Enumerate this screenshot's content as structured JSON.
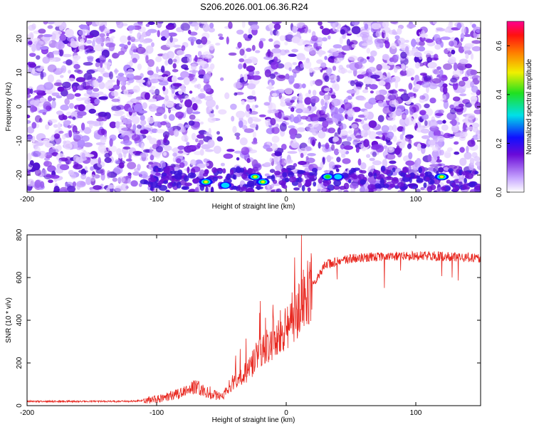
{
  "title": "S206.2026.001.06.36.R24",
  "chart_data": [
    {
      "type": "heatmap",
      "xlabel": "Height of straight line (km)",
      "ylabel": "Frequency (Hz)",
      "xlim": [
        -200,
        150
      ],
      "ylim": [
        -25,
        25
      ],
      "x_ticks": [
        -200,
        -100,
        0,
        100
      ],
      "y_ticks": [
        -20,
        -10,
        0,
        10,
        20
      ],
      "colorbar": {
        "label": "Normalized spectral amplitude",
        "range": [
          0,
          0.7
        ],
        "ticks": [
          0.0,
          0.2,
          0.4,
          0.6
        ],
        "tick_labels": [
          "0.0",
          "0.2",
          "0.4",
          "0.6"
        ],
        "colormap": "rainbow (white-violet-blue-cyan-green-yellow-red-magenta)"
      },
      "hotspots": [
        {
          "x": -62,
          "y": -22,
          "amp": 0.55
        },
        {
          "x": -47,
          "y": -23,
          "amp": 0.3
        },
        {
          "x": -24,
          "y": -20.5,
          "amp": 0.6
        },
        {
          "x": -18,
          "y": -22,
          "amp": 0.5
        },
        {
          "x": 32,
          "y": -20.5,
          "amp": 0.45
        },
        {
          "x": 40,
          "y": -20.5,
          "amp": 0.25
        },
        {
          "x": 120,
          "y": -20.5,
          "amp": 0.6
        }
      ]
    },
    {
      "type": "line",
      "xlabel": "Height of straight line (km)",
      "ylabel": "SNR (10 * v/v)",
      "xlim": [
        -200,
        150
      ],
      "ylim": [
        0,
        800
      ],
      "x_ticks": [
        -200,
        -100,
        0,
        100
      ],
      "y_ticks": [
        0,
        200,
        400,
        600,
        800
      ],
      "line_color": "#e8271f",
      "trend": {
        "x": [
          -200,
          -120,
          -100,
          -80,
          -70,
          -60,
          -50,
          -40,
          -30,
          -20,
          -10,
          0,
          10,
          20,
          30,
          50,
          80,
          100,
          120,
          150
        ],
        "y": [
          20,
          20,
          30,
          60,
          90,
          60,
          40,
          120,
          160,
          260,
          310,
          370,
          460,
          560,
          660,
          690,
          700,
          700,
          700,
          690
        ]
      }
    }
  ]
}
